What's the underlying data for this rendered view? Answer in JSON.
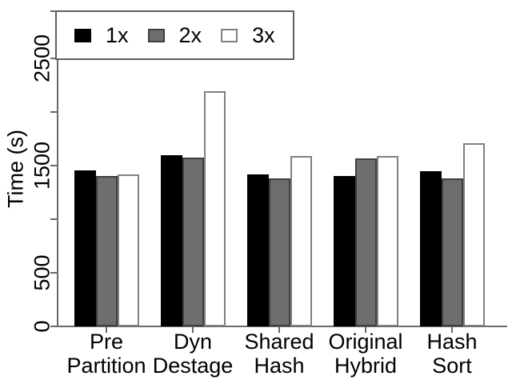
{
  "chart_data": {
    "type": "bar",
    "title": "",
    "xlabel": "",
    "ylabel": "Time (s)",
    "ylim": [
      0,
      2940
    ],
    "grid": false,
    "legend_position": "top-left",
    "yticks": [
      {
        "value": 0,
        "label": "0"
      },
      {
        "value": 500,
        "label": "500"
      },
      {
        "value": 1000,
        "label": ""
      },
      {
        "value": 1500,
        "label": "1500"
      },
      {
        "value": 2000,
        "label": ""
      },
      {
        "value": 2500,
        "label": "2500"
      }
    ],
    "categories": [
      "Pre Partition",
      "Dyn Destage",
      "Shared Hash",
      "Original Hybrid",
      "Hash Sort"
    ],
    "series": [
      {
        "name": "1x",
        "fill": "#000000",
        "border": "#000000",
        "values": [
          1455,
          1600,
          1420,
          1405,
          1450
        ]
      },
      {
        "name": "2x",
        "fill": "#6e6e6e",
        "border": "#3f3f3f",
        "values": [
          1405,
          1575,
          1380,
          1565,
          1380
        ]
      },
      {
        "name": "3x",
        "fill": "#ffffff",
        "border": "#808080",
        "values": [
          1420,
          2195,
          1590,
          1590,
          1710
        ]
      }
    ]
  }
}
